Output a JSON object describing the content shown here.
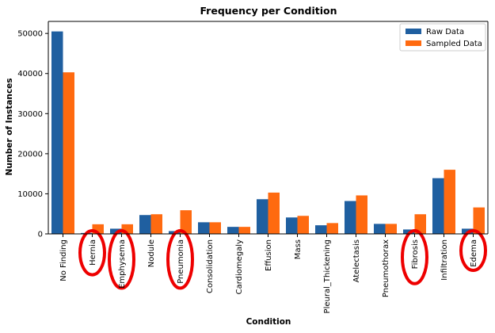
{
  "chart_data": {
    "type": "bar",
    "title": "Frequency per Condition",
    "xlabel": "Condition",
    "ylabel": "Number of Instances",
    "ylim": [
      0,
      53000
    ],
    "yticks": [
      0,
      10000,
      20000,
      30000,
      40000,
      50000
    ],
    "grid": false,
    "legend_position": "top-right",
    "categories": [
      "No Finding",
      "Hernia",
      "Emphysema",
      "Nodule",
      "Pneumonia",
      "Consolidation",
      "Cardiomegaly",
      "Effusion",
      "Mass",
      "Pleural_Thickening",
      "Atelectasis",
      "Pneumothorax",
      "Fibrosis",
      "Infiltration",
      "Edema"
    ],
    "series": [
      {
        "name": "Raw Data",
        "color": "#1f5fa0",
        "values": [
          50500,
          230,
          1300,
          4700,
          700,
          2900,
          1750,
          8650,
          4100,
          2150,
          8200,
          2500,
          1100,
          13900,
          1300
        ]
      },
      {
        "name": "Sampled Data",
        "color": "#ff6a10",
        "values": [
          40300,
          2400,
          2400,
          4900,
          5900,
          2900,
          1750,
          10300,
          4500,
          2700,
          9600,
          2500,
          4900,
          16000,
          6600
        ]
      }
    ],
    "highlighted_categories": [
      "Hernia",
      "Emphysema",
      "Pneumonia",
      "Fibrosis",
      "Edema"
    ],
    "highlight_color": "#ee0000"
  }
}
